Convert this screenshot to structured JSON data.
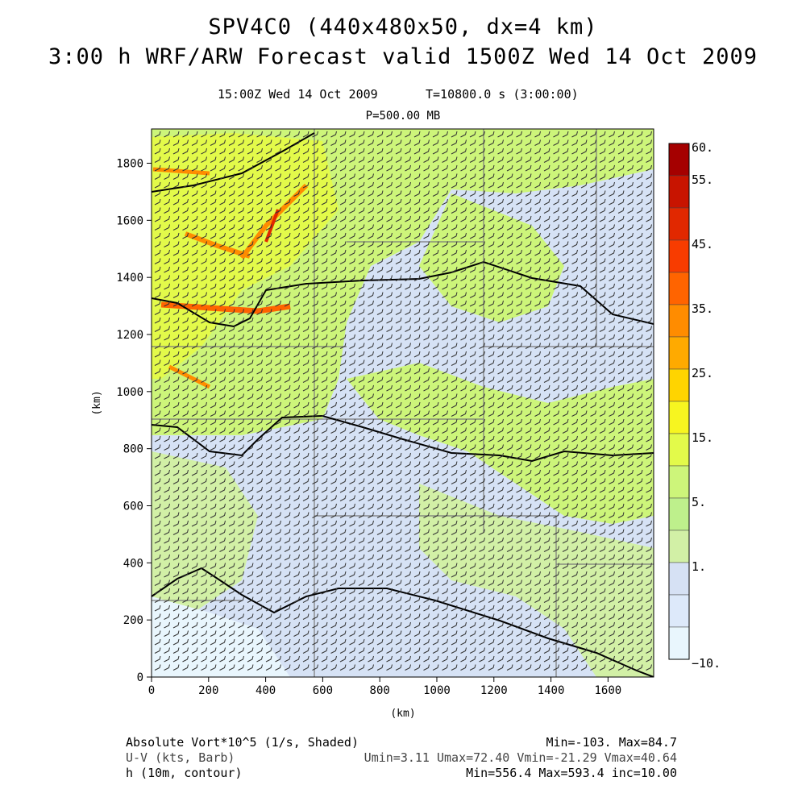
{
  "header": {
    "title_line1": "SPV4C0 (440x480x50, dx=4 km)",
    "title_line2": "3:00 h WRF/ARW Forecast valid 1500Z Wed 14 Oct 2009",
    "valid_time": "15:00Z Wed 14 Oct 2009",
    "model_time": "T=10800.0 s (3:00:00)",
    "pressure_level": "P=500.00 MB"
  },
  "axes": {
    "x_label": "(km)",
    "y_label": "(km)",
    "x_ticks": [
      "0",
      "200",
      "400",
      "600",
      "800",
      "1000",
      "1200",
      "1400",
      "1600"
    ],
    "y_ticks": [
      "0",
      "200",
      "400",
      "600",
      "800",
      "1000",
      "1200",
      "1400",
      "1600",
      "1800"
    ],
    "x_range": [
      0,
      1760
    ],
    "y_range": [
      0,
      1920
    ]
  },
  "colorbar": {
    "labels": [
      "60.",
      "55.",
      "45.",
      "35.",
      "25.",
      "15.",
      "5.",
      "1.",
      "−10."
    ],
    "colors": [
      "#a50000",
      "#c81400",
      "#e12800",
      "#f83c00",
      "#ff6400",
      "#ff8c00",
      "#ffaa00",
      "#ffd400",
      "#f7f520",
      "#e3fa4a",
      "#cdf57a",
      "#bef08c",
      "#d2f0a6",
      "#d6e1f4",
      "#dde9fa",
      "#e9f6fd"
    ]
  },
  "fields": {
    "shaded": "Absolute Vort*10^5 (1/s, Shaded)",
    "shaded_stats": "Min=-103. Max=84.7",
    "barbs": "U-V (kts, Barb)",
    "barbs_stats": "Umin=3.11 Umax=72.40 Vmin=-21.29 Vmax=40.64",
    "contour": "h (10m, contour)",
    "contour_stats": "Min=556.4 Max=593.4 inc=10.00"
  }
}
